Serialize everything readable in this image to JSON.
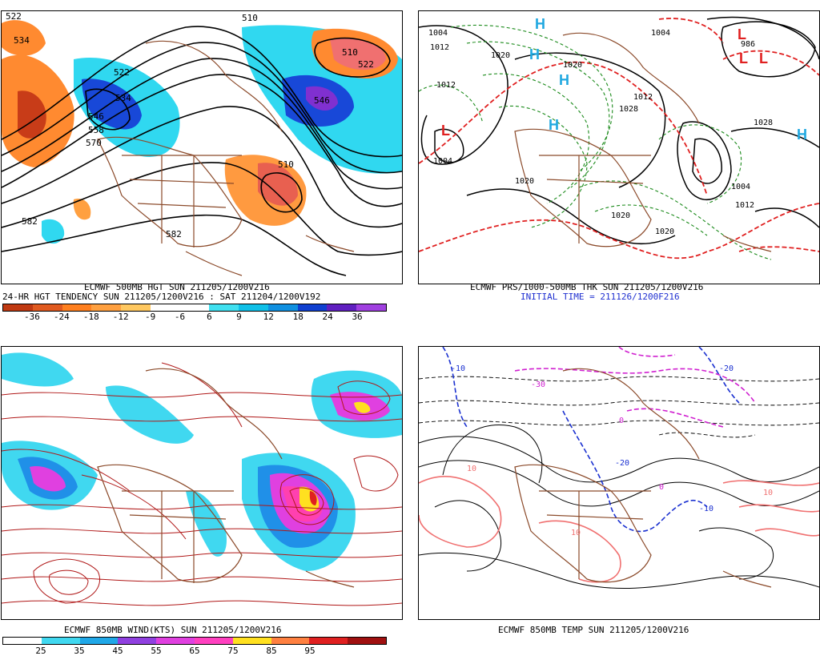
{
  "panels": {
    "tl": {
      "caption1": "ECMWF 500MB HGT SUN 211205/1200V216",
      "caption2": "24-HR HGT TENDENCY SUN 211205/1200V216 : SAT 211204/1200V192",
      "colorbar": {
        "colors": [
          "#c03a12",
          "#e05a20",
          "#ff8020",
          "#ffa040",
          "#ffc860",
          "#ffffff",
          "#ffffff",
          "#40e0f0",
          "#10c0e8",
          "#1090e0",
          "#1040d0",
          "#6020c0",
          "#a040e0"
        ],
        "labels": [
          "-36",
          "-24",
          "-18",
          "-12",
          "-9",
          "-6",
          "6",
          "9",
          "12",
          "18",
          "24",
          "36"
        ]
      },
      "contour_labels": [
        "522",
        "534",
        "510",
        "510",
        "522",
        "534",
        "546",
        "558",
        "570",
        "582",
        "582",
        "546",
        "510",
        "522"
      ]
    },
    "tr": {
      "caption1": "ECMWF PRS/1000-500MB THK SUN 211205/1200V216",
      "caption2": "INITIAL TIME = 211126/1200F216",
      "pressure_labels": [
        "1004",
        "1012",
        "1020",
        "1020",
        "1012",
        "1004",
        "1020",
        "1028",
        "1004",
        "1012",
        "1020",
        "1028",
        "1012",
        "1020",
        "1004",
        "986"
      ],
      "highs": [
        "H",
        "H",
        "H",
        "H",
        "H"
      ],
      "lows": [
        "L",
        "L",
        "L",
        "L"
      ]
    },
    "bl": {
      "caption1": "ECMWF 850MB WIND(KTS) SUN 211205/1200V216",
      "colorbar": {
        "colors": [
          "#ffffff",
          "#40d8f0",
          "#20a8e8",
          "#9040e0",
          "#e040e0",
          "#ff40c0",
          "#ffe020",
          "#ff8040",
          "#e02020",
          "#a01010"
        ],
        "labels": [
          "25",
          "35",
          "45",
          "55",
          "65",
          "75",
          "85",
          "95"
        ]
      }
    },
    "br": {
      "caption1": "ECMWF 850MB TEMP SUN 211205/1200V216",
      "temp_labels": [
        "-10",
        "-20",
        "-30",
        "0",
        "10",
        "10",
        "-20",
        "-10",
        "0",
        "10"
      ]
    }
  }
}
